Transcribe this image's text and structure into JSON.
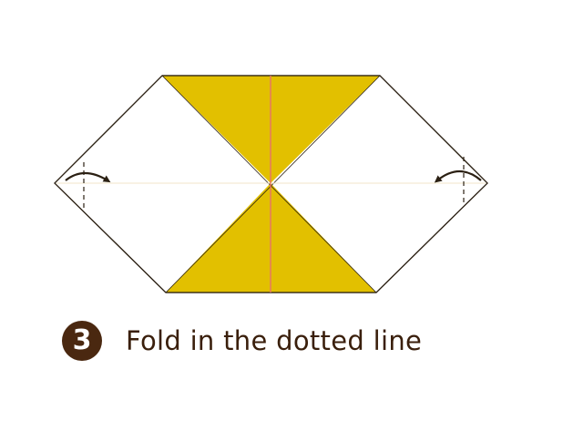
{
  "step": {
    "number": "3",
    "instruction": "Fold in the dotted line"
  },
  "colors": {
    "paper_colored": "#e2c000",
    "paper_white": "#ffffff",
    "outline": "#2b2013",
    "crease_center": "#e8736a",
    "fold_line": "#2b2013",
    "arrow": "#2b2013",
    "badge": "#4a2810",
    "text": "#3a1f0c"
  },
  "icons": {
    "left_arrow": "curved-arrow-right-icon",
    "right_arrow": "curved-arrow-left-icon"
  }
}
